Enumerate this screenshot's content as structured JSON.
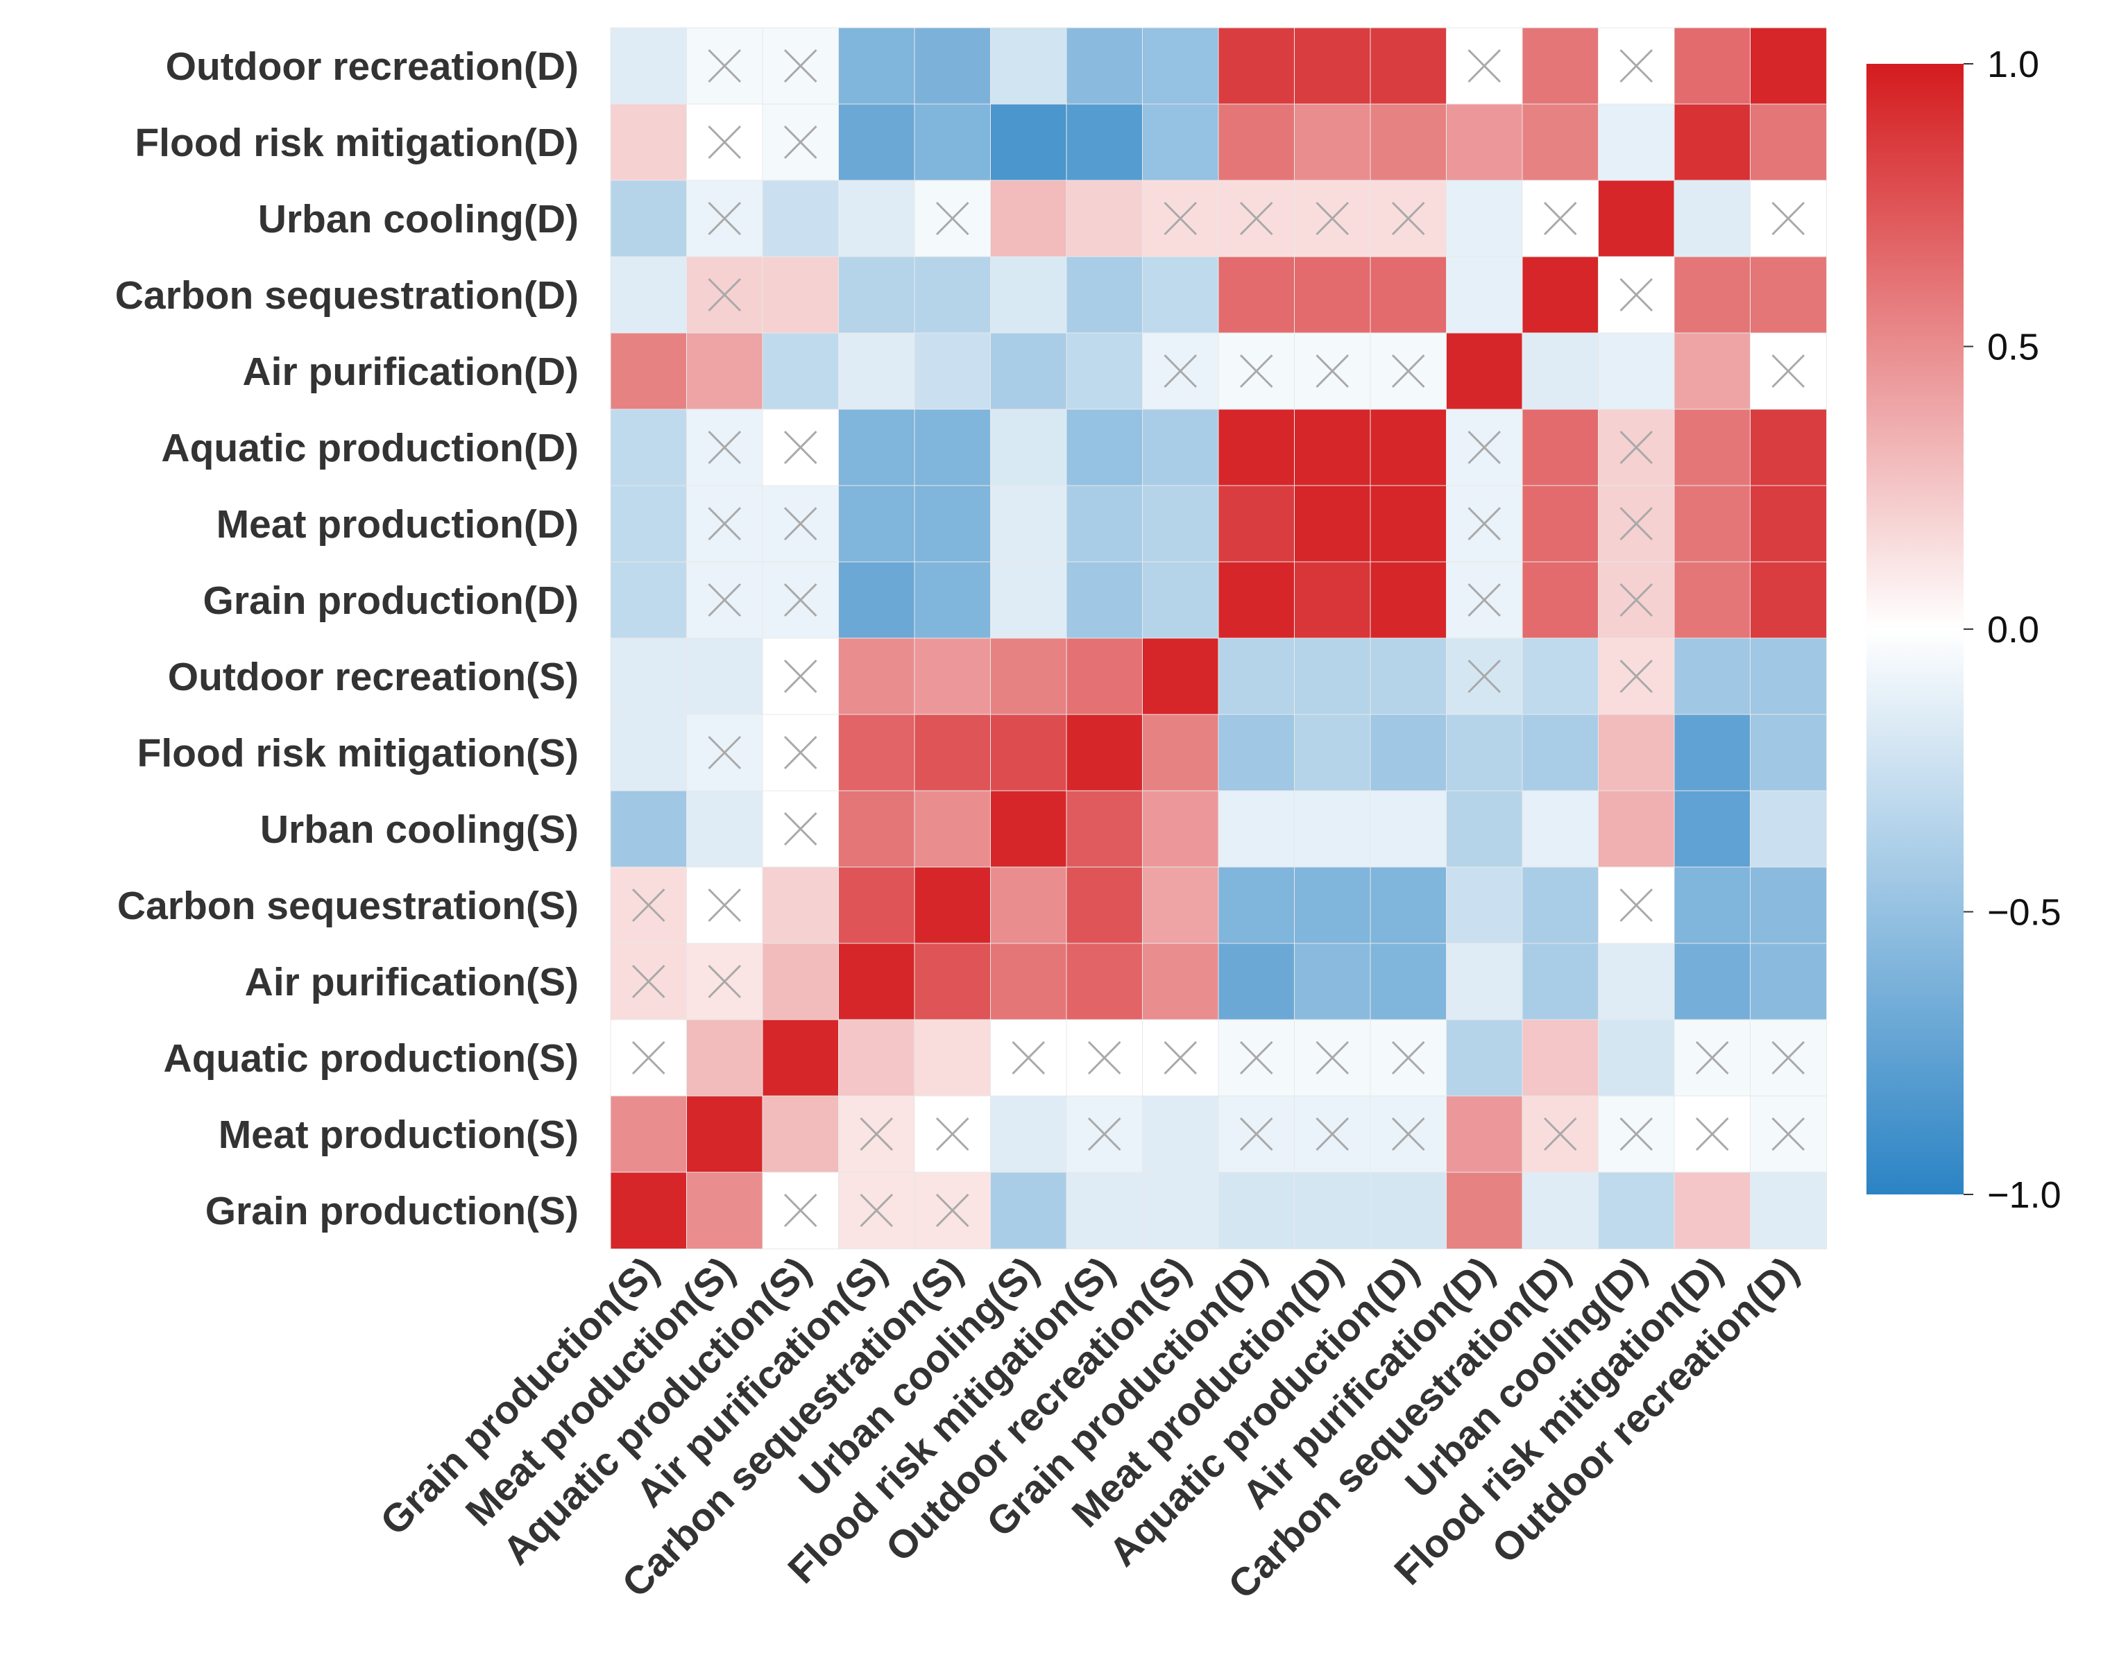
{
  "chart_data": {
    "type": "heatmap",
    "title": "",
    "xlabel": "",
    "ylabel": "",
    "x_labels": [
      "Grain production(S)",
      "Meat production(S)",
      "Aquatic production(S)",
      "Air  purification(S)",
      "Carbon sequestration(S)",
      "Urban cooling(S)",
      "Flood risk mitigation(S)",
      "Outdoor recreation(S)",
      "Grain production(D)",
      "Meat production(D)",
      "Aquatic production(D)",
      "Air  purification(D)",
      "Carbon sequestration(D)",
      "Urban cooling(D)",
      "Flood risk mitigation(D)",
      "Outdoor recreation(D)"
    ],
    "y_labels": [
      "Outdoor recreation(D)",
      "Flood risk mitigation(D)",
      "Urban cooling(D)",
      "Carbon sequestration(D)",
      "Air  purification(D)",
      "Aquatic production(D)",
      "Meat production(D)",
      "Grain production(D)",
      "Outdoor recreation(S)",
      "Flood risk mitigation(S)",
      "Urban cooling(S)",
      "Carbon sequestration(S)",
      "Air  purification(S)",
      "Aquatic production(S)",
      "Meat production(S)",
      "Grain production(S)"
    ],
    "values": [
      [
        -0.15,
        -0.05,
        -0.05,
        -0.6,
        -0.62,
        -0.22,
        -0.55,
        -0.5,
        0.85,
        0.85,
        0.85,
        0.0,
        0.6,
        0.0,
        0.65,
        0.95
      ],
      [
        0.2,
        0.0,
        -0.05,
        -0.7,
        -0.6,
        -0.85,
        -0.8,
        -0.5,
        0.6,
        0.5,
        0.55,
        0.45,
        0.55,
        -0.12,
        0.9,
        0.6
      ],
      [
        -0.35,
        -0.1,
        -0.25,
        -0.15,
        -0.05,
        0.3,
        0.2,
        0.15,
        0.15,
        0.15,
        0.15,
        -0.12,
        0.0,
        0.95,
        -0.15,
        0.0
      ],
      [
        -0.15,
        0.2,
        0.2,
        -0.35,
        -0.35,
        -0.18,
        -0.4,
        -0.3,
        0.65,
        0.65,
        0.65,
        -0.12,
        0.95,
        0.0,
        0.6,
        0.6
      ],
      [
        0.55,
        0.4,
        -0.3,
        -0.15,
        -0.25,
        -0.4,
        -0.3,
        -0.1,
        -0.05,
        -0.05,
        -0.05,
        0.95,
        -0.15,
        -0.12,
        0.4,
        0.0
      ],
      [
        -0.3,
        -0.1,
        0.0,
        -0.6,
        -0.6,
        -0.18,
        -0.5,
        -0.4,
        0.95,
        0.95,
        0.95,
        -0.1,
        0.65,
        0.2,
        0.6,
        0.85
      ],
      [
        -0.3,
        -0.1,
        -0.1,
        -0.6,
        -0.6,
        -0.15,
        -0.4,
        -0.35,
        0.85,
        0.95,
        0.95,
        -0.1,
        0.65,
        0.2,
        0.6,
        0.85
      ],
      [
        -0.3,
        -0.1,
        -0.1,
        -0.7,
        -0.6,
        -0.15,
        -0.45,
        -0.35,
        0.95,
        0.88,
        0.95,
        -0.1,
        0.65,
        0.2,
        0.6,
        0.85
      ],
      [
        -0.15,
        -0.15,
        0.0,
        0.5,
        0.45,
        0.55,
        0.62,
        0.95,
        -0.35,
        -0.35,
        -0.35,
        -0.2,
        -0.3,
        0.15,
        -0.45,
        -0.45
      ],
      [
        -0.15,
        -0.1,
        0.0,
        0.68,
        0.75,
        0.78,
        0.95,
        0.55,
        -0.45,
        -0.35,
        -0.45,
        -0.35,
        -0.4,
        0.3,
        -0.75,
        -0.45
      ],
      [
        -0.45,
        -0.15,
        0.0,
        0.6,
        0.5,
        0.95,
        0.72,
        0.45,
        -0.12,
        -0.12,
        -0.12,
        -0.35,
        -0.12,
        0.35,
        -0.75,
        -0.25
      ],
      [
        0.15,
        0.0,
        0.2,
        0.75,
        0.95,
        0.5,
        0.75,
        0.4,
        -0.6,
        -0.6,
        -0.6,
        -0.25,
        -0.4,
        0.0,
        -0.6,
        -0.55
      ],
      [
        0.15,
        0.12,
        0.3,
        0.95,
        0.75,
        0.6,
        0.68,
        0.5,
        -0.7,
        -0.55,
        -0.6,
        -0.15,
        -0.4,
        -0.15,
        -0.65,
        -0.55
      ],
      [
        0.0,
        0.3,
        0.95,
        0.25,
        0.15,
        0.0,
        0.0,
        0.0,
        -0.05,
        -0.05,
        -0.05,
        -0.35,
        0.25,
        -0.2,
        -0.05,
        -0.05
      ],
      [
        0.5,
        0.95,
        0.3,
        0.12,
        0.0,
        -0.15,
        -0.1,
        -0.15,
        -0.1,
        -0.1,
        -0.1,
        0.45,
        0.15,
        -0.05,
        0.0,
        -0.05
      ],
      [
        0.95,
        0.5,
        0.0,
        0.12,
        0.12,
        -0.4,
        -0.15,
        -0.15,
        -0.2,
        -0.2,
        -0.2,
        0.55,
        -0.15,
        -0.3,
        0.25,
        -0.15
      ]
    ],
    "nonsignificant_cells": [
      [
        0,
        1
      ],
      [
        0,
        2
      ],
      [
        0,
        11
      ],
      [
        0,
        13
      ],
      [
        1,
        1
      ],
      [
        1,
        2
      ],
      [
        2,
        1
      ],
      [
        2,
        4
      ],
      [
        2,
        7
      ],
      [
        2,
        8
      ],
      [
        2,
        9
      ],
      [
        2,
        10
      ],
      [
        2,
        12
      ],
      [
        2,
        15
      ],
      [
        3,
        1
      ],
      [
        3,
        13
      ],
      [
        4,
        7
      ],
      [
        4,
        8
      ],
      [
        4,
        9
      ],
      [
        4,
        10
      ],
      [
        4,
        15
      ],
      [
        5,
        1
      ],
      [
        5,
        2
      ],
      [
        5,
        11
      ],
      [
        5,
        13
      ],
      [
        6,
        1
      ],
      [
        6,
        2
      ],
      [
        6,
        11
      ],
      [
        6,
        13
      ],
      [
        7,
        1
      ],
      [
        7,
        2
      ],
      [
        7,
        11
      ],
      [
        7,
        13
      ],
      [
        8,
        2
      ],
      [
        8,
        11
      ],
      [
        8,
        13
      ],
      [
        9,
        1
      ],
      [
        9,
        2
      ],
      [
        10,
        2
      ],
      [
        11,
        0
      ],
      [
        11,
        1
      ],
      [
        11,
        13
      ],
      [
        12,
        0
      ],
      [
        12,
        1
      ],
      [
        13,
        0
      ],
      [
        13,
        5
      ],
      [
        13,
        6
      ],
      [
        13,
        7
      ],
      [
        13,
        8
      ],
      [
        13,
        9
      ],
      [
        13,
        10
      ],
      [
        13,
        14
      ],
      [
        13,
        15
      ],
      [
        14,
        3
      ],
      [
        14,
        4
      ],
      [
        14,
        6
      ],
      [
        14,
        8
      ],
      [
        14,
        9
      ],
      [
        14,
        10
      ],
      [
        14,
        12
      ],
      [
        14,
        13
      ],
      [
        14,
        14
      ],
      [
        14,
        15
      ],
      [
        15,
        2
      ],
      [
        15,
        3
      ],
      [
        15,
        4
      ]
    ],
    "colorbar": {
      "range": [
        -1.0,
        1.0
      ],
      "ticks": [
        "1.0",
        "0.5",
        "0.0",
        "−0.5",
        "−1.0"
      ],
      "colors": {
        "low": "#2b83c4",
        "mid": "#ffffff",
        "high": "#d41b1e"
      }
    },
    "grid": true,
    "legend_position": "right"
  }
}
